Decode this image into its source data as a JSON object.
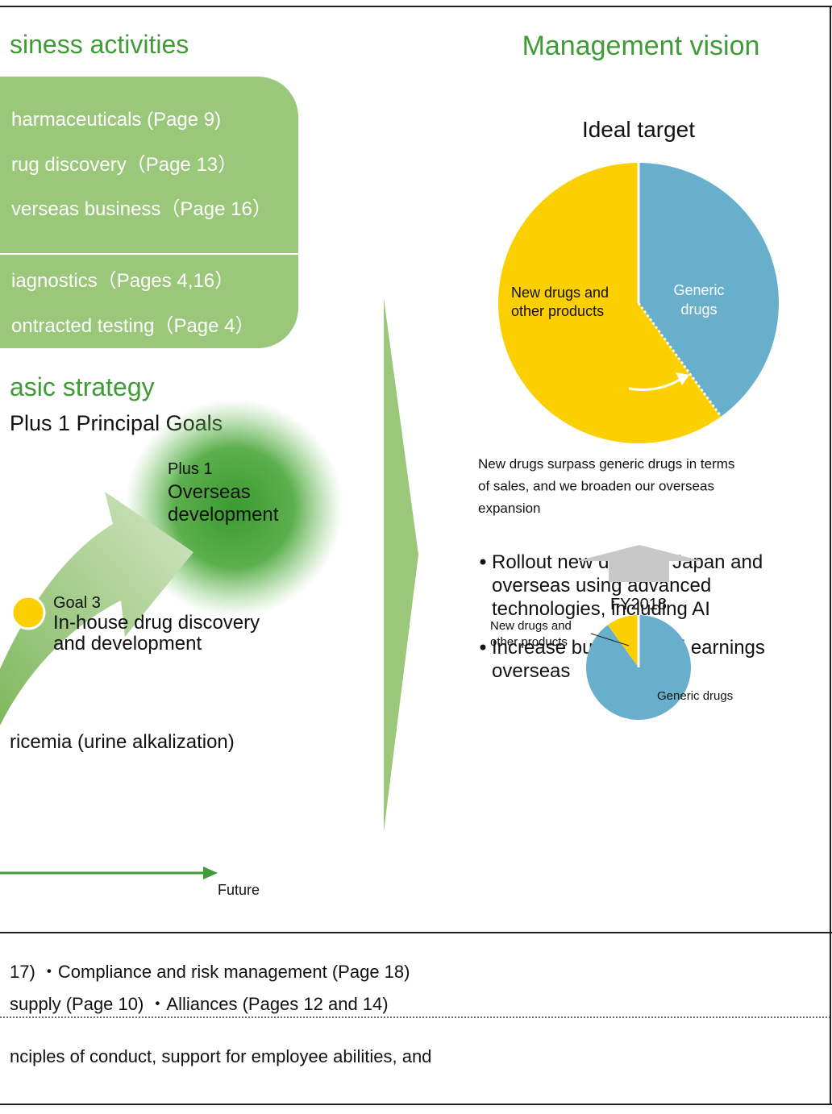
{
  "left": {
    "title": "siness activities",
    "activities": [
      "harmaceuticals (Page 9)",
      "rug discovery（Page 13）",
      "verseas business（Page 16）",
      "iagnostics（Pages 4,16）",
      "ontracted testing（Page 4）"
    ],
    "strategy_title": "asic strategy",
    "goals_title": "Plus 1 Principal Goals",
    "plus1": {
      "tag": "Plus 1",
      "lines": [
        "Overseas",
        "development"
      ]
    },
    "goal3": {
      "tag": "Goal 3",
      "lines": [
        "In-house drug discovery",
        "and development"
      ]
    },
    "note": "ricemia (urine alkalization)",
    "future": "Future"
  },
  "vision": {
    "title": "Management vision",
    "ideal_pie": {
      "type": "pie",
      "title": "Ideal target",
      "slices": [
        {
          "name": [
            "Generic",
            "drugs"
          ],
          "value": 40,
          "color": "#67afcb"
        },
        {
          "name": [
            "New drugs and",
            "other products"
          ],
          "value": 60,
          "color": "#fccf00"
        }
      ]
    },
    "caption": [
      "New drugs surpass generic drugs in terms",
      "of sales, and we broaden our overseas",
      "expansion"
    ],
    "bullets": [
      [
        "Rollout new drugs in Japan and",
        "overseas using advanced",
        "technologies, including AI"
      ],
      [
        "Increase business and earnings",
        "overseas"
      ]
    ],
    "fy_pie": {
      "type": "pie",
      "title": "FY2018",
      "slices": [
        {
          "name": [
            "Generic drugs"
          ],
          "value": 90,
          "color": "#67afcb"
        },
        {
          "name": [
            "New drugs and",
            "other products"
          ],
          "value": 10,
          "color": "#fccf00"
        }
      ]
    }
  },
  "footer": {
    "lines": [
      "17)    ・Compliance and risk management (Page 18)",
      "supply (Page 10)    ・Alliances (Pages 12 and 14)",
      "nciples of conduct, support for employee abilities, and"
    ]
  }
}
